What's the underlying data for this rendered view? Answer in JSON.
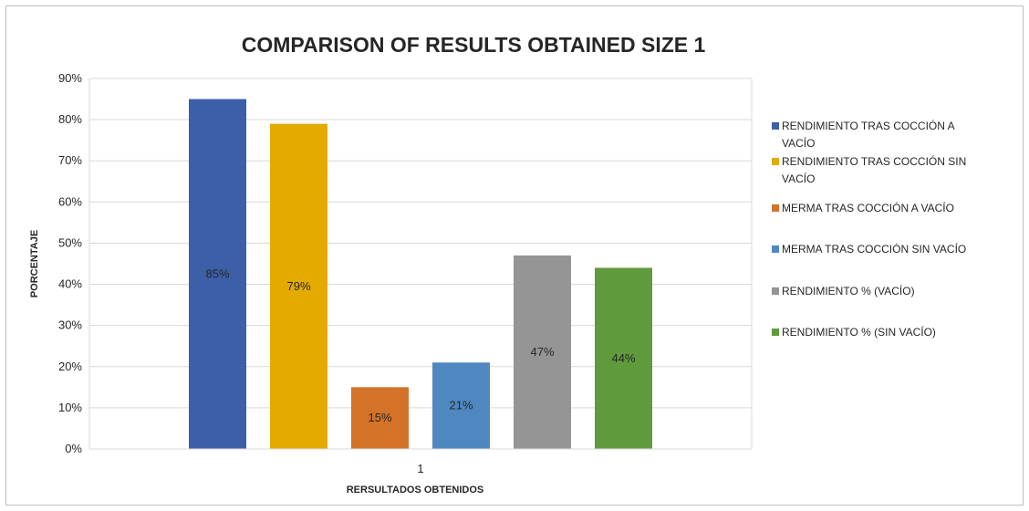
{
  "chart_data": {
    "type": "bar",
    "title": "COMPARISON OF RESULTS OBTAINED SIZE 1",
    "xlabel": "RERSULTADOS OBTENIDOS",
    "ylabel": "PORCENTAJE",
    "categories": [
      "1"
    ],
    "ylim": [
      0,
      90
    ],
    "yticks": [
      "0%",
      "10%",
      "20%",
      "30%",
      "40%",
      "50%",
      "60%",
      "70%",
      "80%",
      "90%"
    ],
    "grid": true,
    "legend_position": "right",
    "series": [
      {
        "name": "RENDIMIENTO TRAS COCCIÓN A VACÍO",
        "legend_lines": [
          "RENDIMIENTO TRAS COCCIÓN A",
          "VACÍO"
        ],
        "values": [
          85
        ],
        "label": "85%",
        "color": "#3d5fa8"
      },
      {
        "name": "RENDIMIENTO TRAS COCCIÓN SIN VACÍO",
        "legend_lines": [
          "RENDIMIENTO TRAS COCCIÓN SIN",
          "VACÍO"
        ],
        "values": [
          79
        ],
        "label": "79%",
        "color": "#e3aa00"
      },
      {
        "name": "MERMA TRAS COCCIÓN A VACÍO",
        "legend_lines": [
          "MERMA TRAS COCCIÓN A VACÍO"
        ],
        "values": [
          15
        ],
        "label": "15%",
        "color": "#d4722a"
      },
      {
        "name": "MERMA TRAS COCCIÓN SIN VACÍO",
        "legend_lines": [
          "MERMA TRAS COCCIÓN SIN VACÍO"
        ],
        "values": [
          21
        ],
        "label": "21%",
        "color": "#4f88c0"
      },
      {
        "name": "RENDIMIENTO % (VACÍO)",
        "legend_lines": [
          "RENDIMIENTO % (VACÍO)"
        ],
        "values": [
          47
        ],
        "label": "47%",
        "color": "#959595"
      },
      {
        "name": "RENDIMIENTO % (SIN VACÍO)",
        "legend_lines": [
          "RENDIMIENTO % (SIN VACÍO)"
        ],
        "values": [
          44
        ],
        "label": "44%",
        "color": "#5f9b3c"
      }
    ]
  }
}
